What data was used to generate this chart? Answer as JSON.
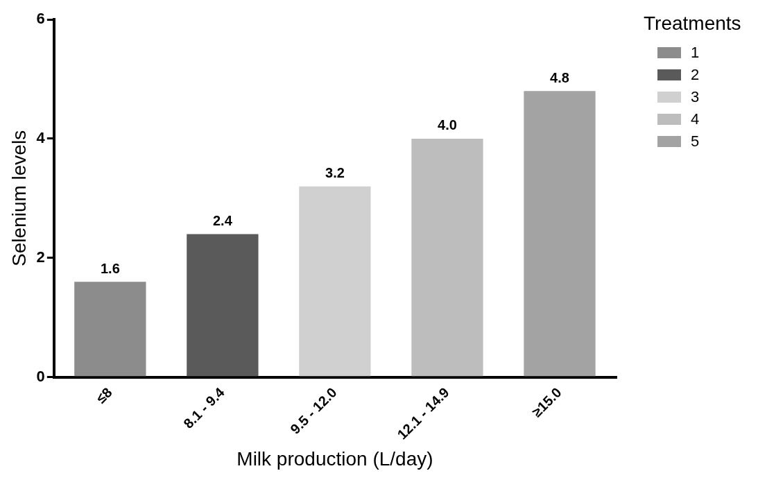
{
  "chart_data": {
    "type": "bar",
    "xlabel": "Milk production (L/day)",
    "ylabel": "Selenium levels",
    "legend_title": "Treatments",
    "categories": [
      "≤8",
      "8.1 - 9.4",
      "9.5 - 12.0",
      "12.1 - 14.9",
      "≥15.0"
    ],
    "series": [
      {
        "name": "1",
        "color": "#8c8c8c",
        "values": [
          1.6,
          null,
          null,
          null,
          null
        ],
        "value_labels": [
          "1.6",
          null,
          null,
          null,
          null
        ]
      },
      {
        "name": "2",
        "color": "#5a5a5a",
        "values": [
          null,
          2.4,
          null,
          null,
          null
        ],
        "value_labels": [
          null,
          "2.4",
          null,
          null,
          null
        ]
      },
      {
        "name": "3",
        "color": "#d0d0d0",
        "values": [
          null,
          null,
          3.2,
          null,
          null
        ],
        "value_labels": [
          null,
          null,
          "3.2",
          null,
          null
        ]
      },
      {
        "name": "4",
        "color": "#bdbdbd",
        "values": [
          null,
          null,
          null,
          4.0,
          null
        ],
        "value_labels": [
          null,
          null,
          null,
          "4.0",
          null
        ]
      },
      {
        "name": "5",
        "color": "#a3a3a3",
        "values": [
          null,
          null,
          null,
          null,
          4.8
        ],
        "value_labels": [
          null,
          null,
          null,
          null,
          "4.8"
        ]
      }
    ],
    "ylim": [
      0,
      6
    ],
    "yticks": [
      0,
      2,
      4,
      6
    ],
    "grid": false,
    "legend": "top right"
  }
}
